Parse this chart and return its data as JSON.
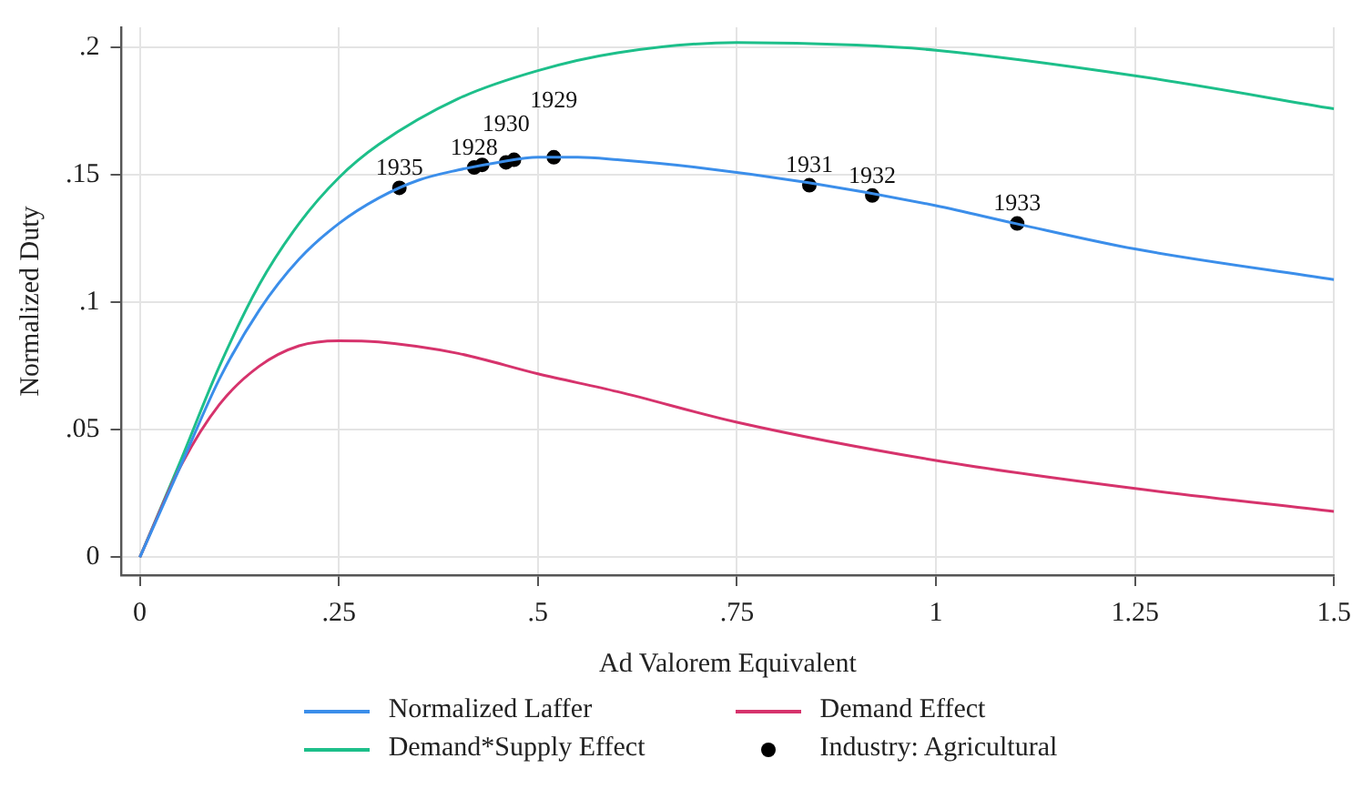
{
  "chart_data": {
    "type": "line",
    "xlabel": "Ad Valorem Equivalent",
    "ylabel": "Normalized Duty",
    "xlim": [
      -0.023,
      1.5
    ],
    "ylim": [
      -0.007,
      0.208
    ],
    "xticks": [
      0,
      {
        "value": 0.25,
        "label": ".25"
      },
      {
        "value": 0.5,
        "label": ".5"
      },
      {
        "value": 0.75,
        "label": ".75"
      },
      1,
      1.25,
      1.5
    ],
    "yticks": [
      0,
      {
        "value": 0.05,
        "label": ".05"
      },
      {
        "value": 0.1,
        "label": ".1"
      },
      {
        "value": 0.15,
        "label": ".15"
      },
      {
        "value": 0.2,
        "label": ".2"
      }
    ],
    "grid": true,
    "legend": "bottom",
    "marker": "none",
    "line_style": "solid",
    "series": [
      {
        "name": "Normalized Laffer",
        "color": "#3b8eea",
        "x": [
          0,
          0.05,
          0.1,
          0.15,
          0.2,
          0.25,
          0.3,
          0.35,
          0.4,
          0.45,
          0.5,
          0.55,
          0.6,
          0.7,
          0.84,
          1,
          1.1,
          1.25,
          1.5
        ],
        "values": [
          0,
          0.035,
          0.07,
          0.097,
          0.117,
          0.131,
          0.141,
          0.148,
          0.152,
          0.155,
          0.157,
          0.157,
          0.156,
          0.153,
          0.147,
          0.138,
          0.131,
          0.121,
          0.109
        ]
      },
      {
        "name": "Demand Effect",
        "color": "#d6336c",
        "x": [
          0,
          0.05,
          0.1,
          0.15,
          0.2,
          0.25,
          0.3,
          0.4,
          0.5,
          0.6,
          0.75,
          1,
          1.25,
          1.5
        ],
        "values": [
          0,
          0.035,
          0.06,
          0.075,
          0.083,
          0.085,
          0.0845,
          0.08,
          0.072,
          0.065,
          0.053,
          0.038,
          0.027,
          0.018
        ]
      },
      {
        "name": "Demand*Supply Effect",
        "color": "#1dbf8a",
        "x": [
          0,
          0.05,
          0.1,
          0.15,
          0.2,
          0.25,
          0.3,
          0.4,
          0.5,
          0.6,
          0.75,
          0.9,
          1,
          1.25,
          1.5
        ],
        "values": [
          0,
          0.037,
          0.075,
          0.107,
          0.131,
          0.149,
          0.162,
          0.18,
          0.191,
          0.198,
          0.202,
          0.201,
          0.199,
          0.189,
          0.176
        ]
      },
      {
        "name": "Industry: Agricultural",
        "type": "scatter",
        "marker": "circle",
        "color": "#000000",
        "x": [
          0.326,
          0.42,
          0.43,
          0.46,
          0.47,
          0.52,
          0.841,
          0.92,
          1.102
        ],
        "values": [
          0.145,
          0.153,
          0.154,
          0.155,
          0.156,
          0.157,
          0.146,
          0.142,
          0.131
        ]
      }
    ],
    "annotations": [
      {
        "text": "1935",
        "x": 0.326,
        "y": 0.145
      },
      {
        "text": "1928",
        "x": 0.42,
        "y": 0.153
      },
      {
        "text": "1930",
        "x": 0.46,
        "y": 0.155
      },
      {
        "text": "1929",
        "x": 0.52,
        "y": 0.157
      },
      {
        "text": "1931",
        "x": 0.841,
        "y": 0.146
      },
      {
        "text": "1932",
        "x": 0.92,
        "y": 0.142
      },
      {
        "text": "1933",
        "x": 1.102,
        "y": 0.131
      }
    ]
  }
}
